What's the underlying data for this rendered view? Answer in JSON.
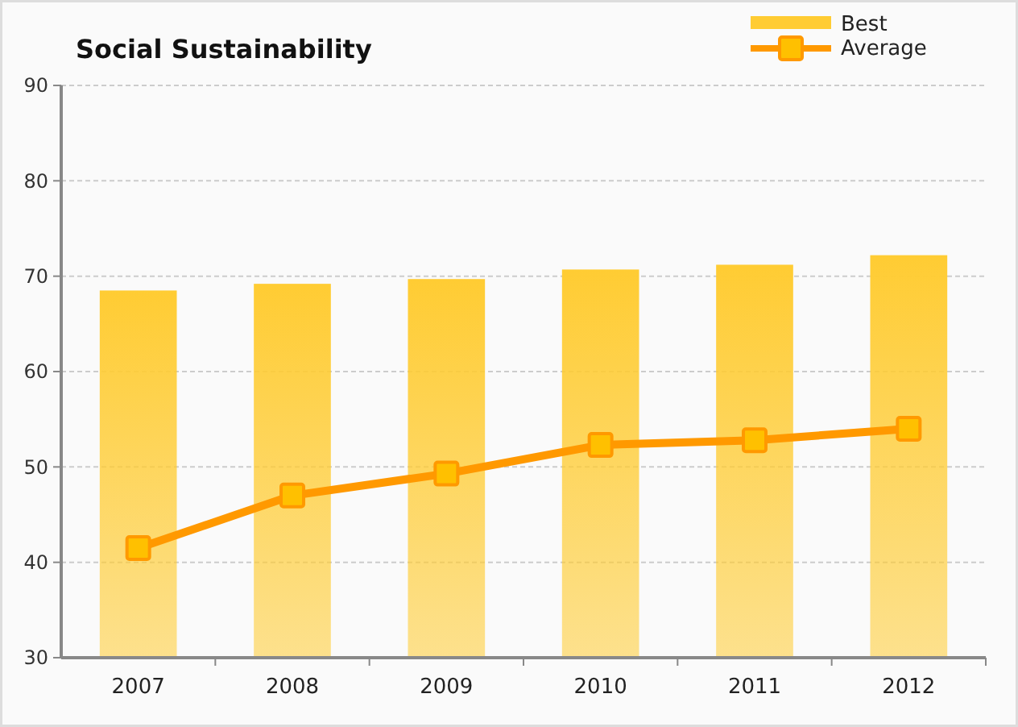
{
  "chart_data": {
    "type": "bar",
    "title": "Social Sustainability",
    "categories": [
      "2007",
      "2008",
      "2009",
      "2010",
      "2011",
      "2012"
    ],
    "series": [
      {
        "name": "Best",
        "color": "#ffcc33",
        "values": [
          68.5,
          69.2,
          69.7,
          70.7,
          71.2,
          72.2
        ]
      },
      {
        "name": "Average",
        "type": "line",
        "color": "#ff9900",
        "marker": "square",
        "values": [
          41.5,
          47.0,
          49.3,
          52.3,
          52.8,
          54.0
        ]
      }
    ],
    "ylim": [
      30,
      90
    ],
    "yticks": [
      30,
      40,
      50,
      60,
      70,
      80,
      90
    ],
    "grid": "y",
    "legend": "top right"
  }
}
